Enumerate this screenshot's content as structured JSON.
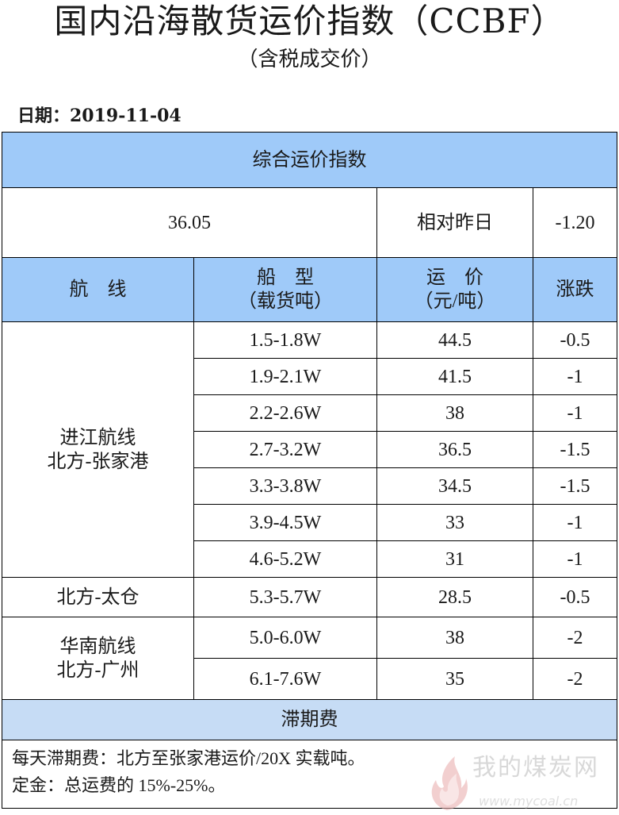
{
  "header": {
    "title": "国内沿海散货运价指数（CCBF）",
    "subtitle": "（含税成交价）",
    "date": "日期：2019-11-04"
  },
  "summary": {
    "section_title": "综合运价指数",
    "index_value": "36.05",
    "compare_label": "相对昨日",
    "change": "-1.20"
  },
  "columns": {
    "route": "航　线",
    "ship_type_line1": "船　型",
    "ship_type_line2": "（载货吨）",
    "price_line1": "运　价",
    "price_line2": "（元/吨）",
    "change": "涨跌"
  },
  "groups": [
    {
      "route_line1": "进江航线",
      "route_line2": "北方-张家港",
      "rows": [
        {
          "ship": "1.5-1.8W",
          "price": "44.5",
          "change": "-0.5"
        },
        {
          "ship": "1.9-2.1W",
          "price": "41.5",
          "change": "-1"
        },
        {
          "ship": "2.2-2.6W",
          "price": "38",
          "change": "-1"
        },
        {
          "ship": "2.7-3.2W",
          "price": "36.5",
          "change": "-1.5"
        },
        {
          "ship": "3.3-3.8W",
          "price": "34.5",
          "change": "-1.5"
        },
        {
          "ship": "3.9-4.5W",
          "price": "33",
          "change": "-1"
        },
        {
          "ship": "4.6-5.2W",
          "price": "31",
          "change": "-1"
        }
      ]
    },
    {
      "route_line1": "北方-太仓",
      "rows": [
        {
          "ship": "5.3-5.7W",
          "price": "28.5",
          "change": "-0.5"
        }
      ]
    },
    {
      "route_line1": "华南航线",
      "route_line2": "北方-广州",
      "rows": [
        {
          "ship": "5.0-6.0W",
          "price": "38",
          "change": "-2"
        },
        {
          "ship": "6.1-7.6W",
          "price": "35",
          "change": "-2"
        }
      ]
    }
  ],
  "demurrage": {
    "section_title": "滞期费",
    "line1": "每天滞期费：北方至张家港运价/20X 实载吨。",
    "line2": "定金：总运费的 15%-25%。"
  },
  "watermark": {
    "text": "我的煤炭网",
    "url": "www.mycoal.cn",
    "icon": "flame-logo-icon"
  },
  "colors": {
    "header_fill": "#9fcaf9",
    "section_fill": "#c6dcf5"
  }
}
